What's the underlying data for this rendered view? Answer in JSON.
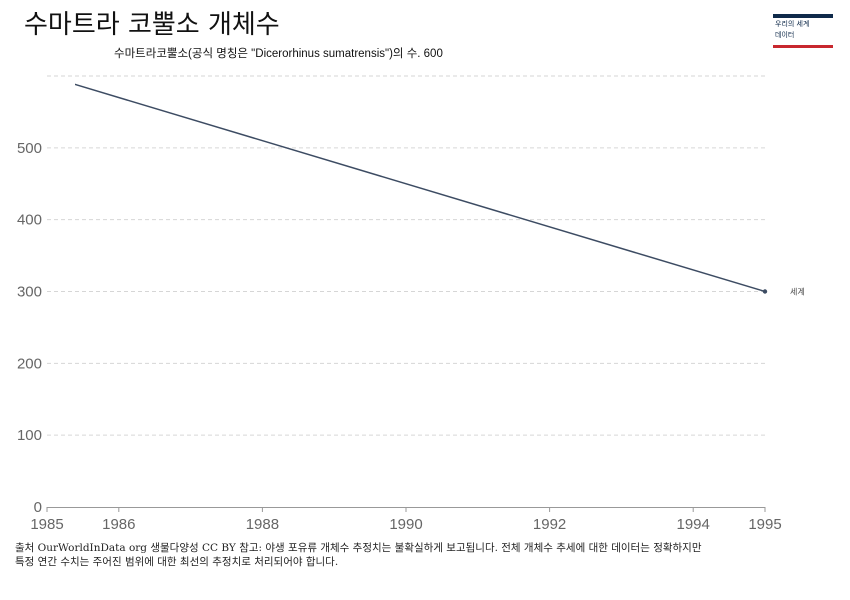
{
  "title": "수마트라 코뿔소 개체수",
  "subtitle": "수마트라코뿔소(공식 명칭은 \"Dicerorhinus sumatrensis\")의 수. 600",
  "logo": {
    "line1": "우리의 세계",
    "line2": "데이터"
  },
  "colors": {
    "line": "#3d4c63",
    "grid": "#d6d6d6",
    "axis": "#999999",
    "tick_text": "#666666",
    "logo_navy": "#0f2a4a",
    "logo_red": "#c8282e"
  },
  "chart_data": {
    "type": "line",
    "x_ticks": [
      "1985",
      "1986",
      "1988",
      "1990",
      "1992",
      "1994",
      "1995"
    ],
    "y_ticks": [
      "0",
      "100",
      "200",
      "300",
      "400",
      "500"
    ],
    "xlim": [
      1985,
      1995
    ],
    "ylim": [
      0,
      600
    ],
    "grid": true,
    "series": [
      {
        "name": "세계",
        "x": [
          1985,
          1995
        ],
        "y": [
          600,
          300
        ]
      }
    ]
  },
  "footer": {
    "line1": "출처 OurWorldInData org 생물다양성 CC BY 참고: 야생 포유류 개체수 추정치는 불확실하게 보고됩니다. 전체 개체수 추세에 대한 데이터는 정확하지만",
    "line2": "특정 연간 수치는 주어진 범위에 대한 최선의 추정치로 처리되어야 합니다."
  }
}
